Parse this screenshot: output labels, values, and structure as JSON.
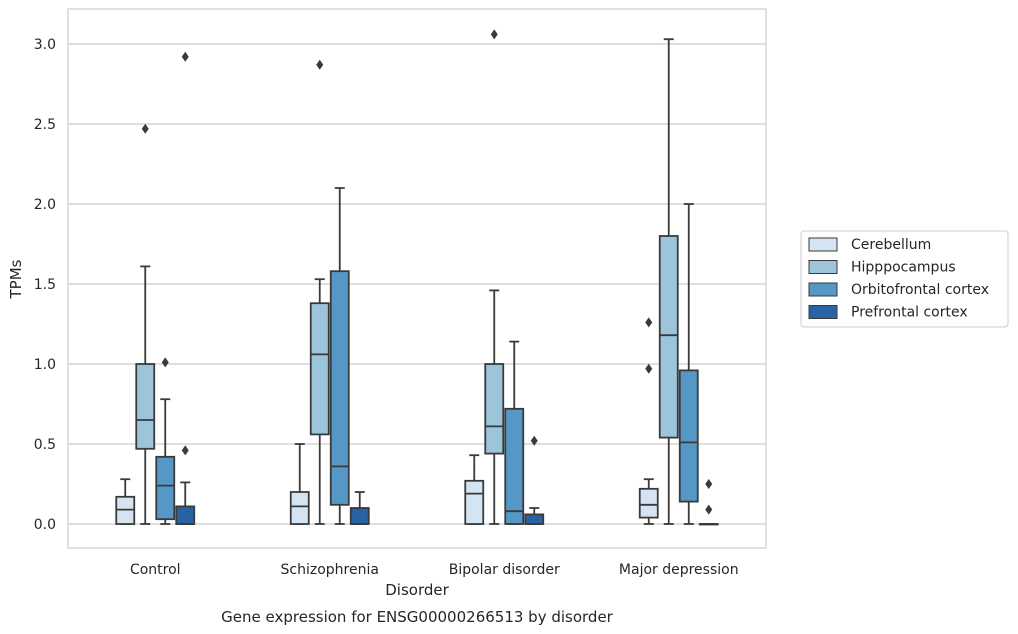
{
  "chart_data": {
    "type": "box",
    "xlabel": "Disorder",
    "ylabel": "TPMs",
    "caption": "Gene expression for ENSG00000266513 by disorder",
    "ylim": [
      -0.15,
      3.22
    ],
    "yticks": [
      0.0,
      0.5,
      1.0,
      1.5,
      2.0,
      2.5,
      3.0
    ],
    "ytick_labels": [
      "0.0",
      "0.5",
      "1.0",
      "1.5",
      "2.0",
      "2.5",
      "3.0"
    ],
    "grid": "horizontal",
    "legend_position": "right",
    "categories": [
      "Control",
      "Schizophrenia",
      "Bipolar disorder",
      "Major depression"
    ],
    "series": [
      {
        "name": "Cerebellum",
        "color": "#d4e4f3",
        "boxes": [
          {
            "whislo": 0.0,
            "q1": 0.0,
            "med": 0.09,
            "q3": 0.17,
            "whishi": 0.28,
            "fliers": []
          },
          {
            "whislo": 0.0,
            "q1": 0.0,
            "med": 0.11,
            "q3": 0.2,
            "whishi": 0.5,
            "fliers": []
          },
          {
            "whislo": 0.0,
            "q1": 0.0,
            "med": 0.19,
            "q3": 0.27,
            "whishi": 0.43,
            "fliers": []
          },
          {
            "whislo": 0.0,
            "q1": 0.04,
            "med": 0.12,
            "q3": 0.22,
            "whishi": 0.28,
            "fliers": [
              0.97,
              1.26
            ]
          }
        ]
      },
      {
        "name": "Hipppocampus",
        "color": "#9cc4db",
        "boxes": [
          {
            "whislo": 0.0,
            "q1": 0.47,
            "med": 0.65,
            "q3": 1.0,
            "whishi": 1.61,
            "fliers": [
              2.47
            ]
          },
          {
            "whislo": 0.0,
            "q1": 0.56,
            "med": 1.06,
            "q3": 1.38,
            "whishi": 1.53,
            "fliers": [
              2.87
            ]
          },
          {
            "whislo": 0.0,
            "q1": 0.44,
            "med": 0.61,
            "q3": 1.0,
            "whishi": 1.46,
            "fliers": [
              3.06
            ]
          },
          {
            "whislo": 0.0,
            "q1": 0.54,
            "med": 1.18,
            "q3": 1.8,
            "whishi": 3.03,
            "fliers": []
          }
        ]
      },
      {
        "name": "Orbitofrontal cortex",
        "color": "#5698c5",
        "boxes": [
          {
            "whislo": 0.0,
            "q1": 0.03,
            "med": 0.24,
            "q3": 0.42,
            "whishi": 0.78,
            "fliers": [
              1.01
            ]
          },
          {
            "whislo": 0.0,
            "q1": 0.12,
            "med": 0.36,
            "q3": 1.58,
            "whishi": 2.1,
            "fliers": []
          },
          {
            "whislo": 0.0,
            "q1": 0.0,
            "med": 0.08,
            "q3": 0.72,
            "whishi": 1.14,
            "fliers": []
          },
          {
            "whislo": 0.0,
            "q1": 0.14,
            "med": 0.51,
            "q3": 0.96,
            "whishi": 2.0,
            "fliers": []
          }
        ]
      },
      {
        "name": "Prefrontal cortex",
        "color": "#2862a3",
        "boxes": [
          {
            "whislo": 0.0,
            "q1": 0.0,
            "med": 0.0,
            "q3": 0.11,
            "whishi": 0.26,
            "fliers": [
              0.46,
              2.92
            ]
          },
          {
            "whislo": 0.0,
            "q1": 0.0,
            "med": 0.0,
            "q3": 0.1,
            "whishi": 0.2,
            "fliers": []
          },
          {
            "whislo": 0.0,
            "q1": 0.0,
            "med": 0.0,
            "q3": 0.06,
            "whishi": 0.1,
            "fliers": [
              0.52
            ]
          },
          {
            "whislo": 0.0,
            "q1": 0.0,
            "med": 0.0,
            "q3": 0.0,
            "whishi": 0.0,
            "fliers": [
              0.09,
              0.25
            ]
          }
        ]
      }
    ]
  }
}
